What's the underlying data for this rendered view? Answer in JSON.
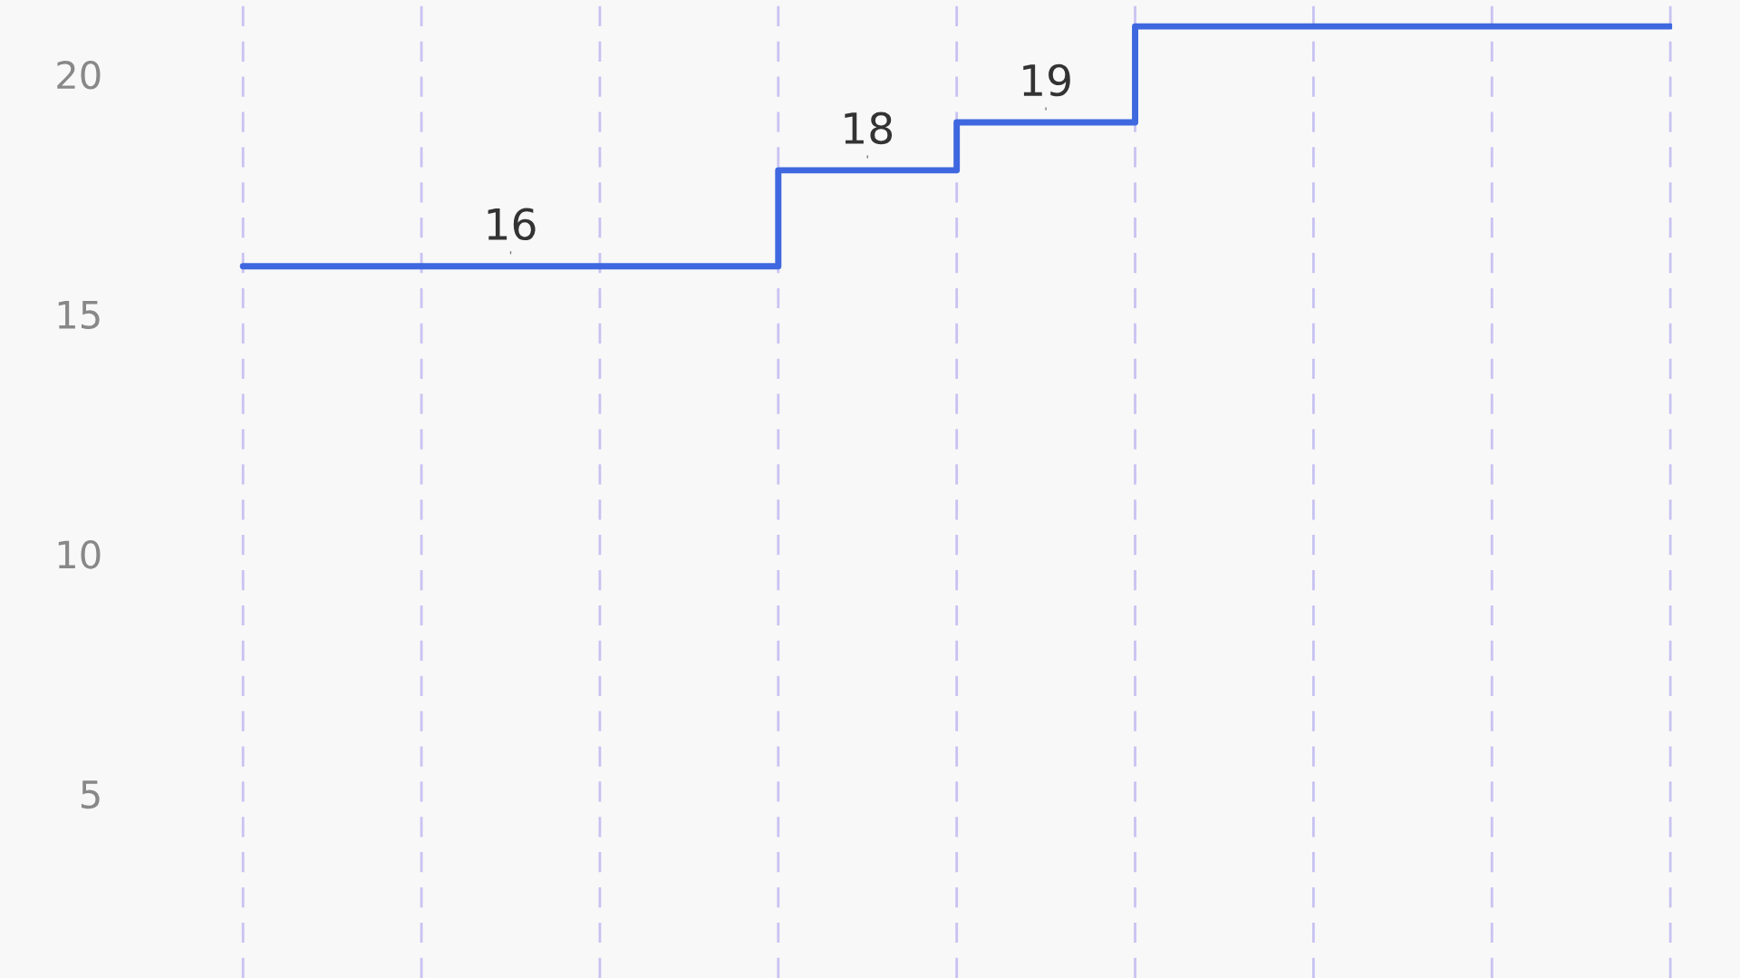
{
  "chart_data": {
    "type": "step",
    "categories": [
      null,
      null,
      null,
      null,
      null,
      null,
      null,
      null,
      null
    ],
    "series": [
      {
        "color": "#3f68e0",
        "values": [
          16,
          16,
          16,
          18,
          19,
          21,
          21,
          21,
          21
        ],
        "value_labels": [
          null,
          "16",
          null,
          "18",
          "19",
          null,
          null,
          null,
          null
        ]
      }
    ],
    "ylim": [
      1.16,
      21.55
    ],
    "yticks": [
      5,
      10,
      15,
      20
    ],
    "grid": "x",
    "tick_labels": "y"
  }
}
